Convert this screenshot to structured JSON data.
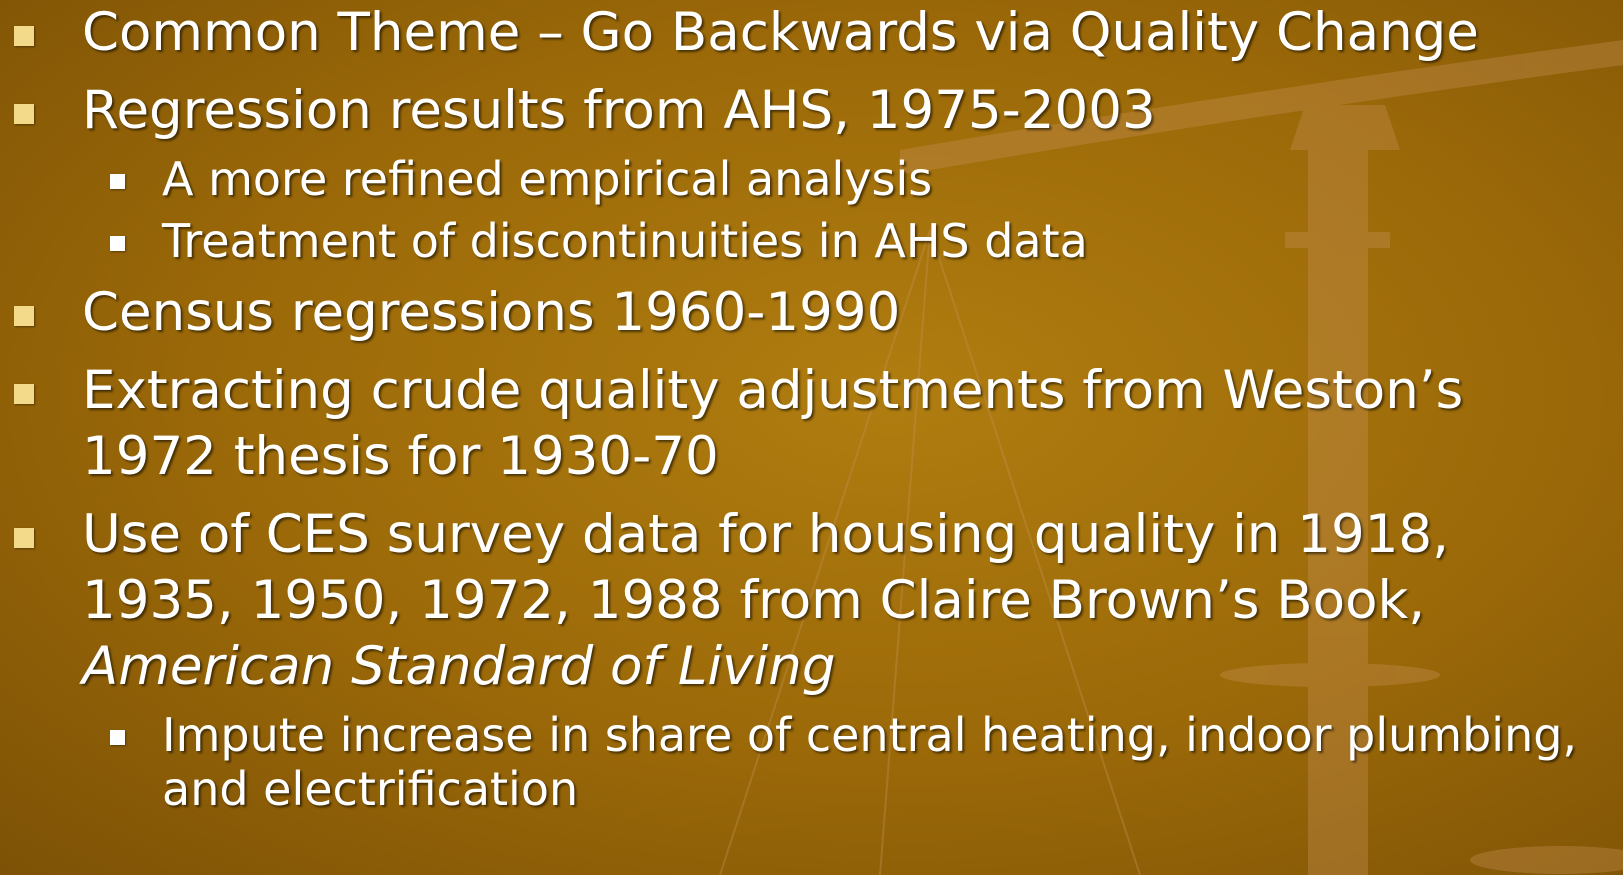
{
  "slide": {
    "bullets": [
      {
        "level": 1,
        "text": "Common Theme – Go Backwards via Quality Change"
      },
      {
        "level": 1,
        "text": "Regression results from AHS, 1975-2003"
      },
      {
        "level": 2,
        "text": "A more refined empirical analysis"
      },
      {
        "level": 2,
        "text": "Treatment of discontinuities in AHS data"
      },
      {
        "level": 1,
        "text": "Census regressions 1960-1990"
      },
      {
        "level": 1,
        "text": "Extracting crude quality adjustments from Weston’s 1972 thesis for 1930-70"
      },
      {
        "level": 1,
        "text": "Use of CES survey data for housing quality in 1918, 1935, 1950, 1972, 1988 from Claire Brown’s Book,",
        "italic": "American Standard of Living"
      },
      {
        "level": 2,
        "text": "Impute increase in share of central heating, indoor plumbing, and electrification"
      }
    ]
  }
}
